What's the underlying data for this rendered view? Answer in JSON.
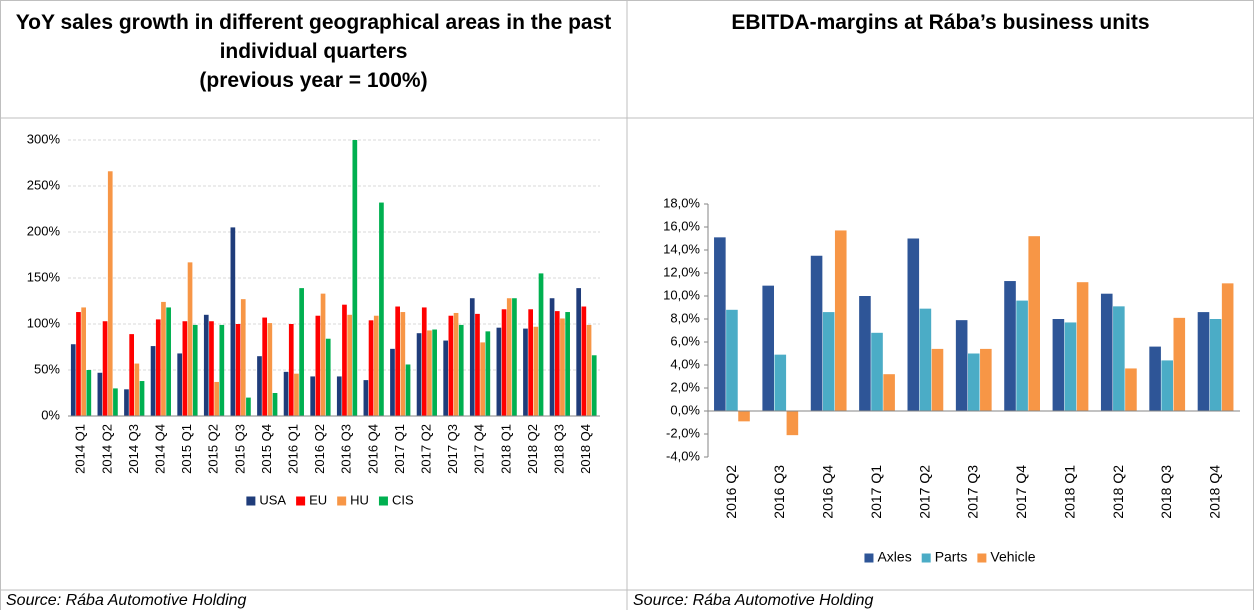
{
  "chart_data": [
    {
      "type": "bar",
      "title": "YoY sales growth in different geographical areas in the past individual quarters",
      "subtitle": "(previous year = 100%)",
      "source": "Source: Rába Automotive Holding",
      "categories": [
        "2014 Q1",
        "2014 Q2",
        "2014 Q3",
        "2014 Q4",
        "2015 Q1",
        "2015 Q2",
        "2015 Q3",
        "2015 Q4",
        "2016 Q1",
        "2016 Q2",
        "2016 Q3",
        "2016 Q4",
        "2017 Q1",
        "2017 Q2",
        "2017 Q3",
        "2017 Q4",
        "2018 Q1",
        "2018 Q2",
        "2018 Q3",
        "2018 Q4"
      ],
      "series": [
        {
          "name": "USA",
          "color": "#1f3c7a",
          "values": [
            78,
            47,
            29,
            76,
            68,
            110,
            205,
            65,
            48,
            43,
            43,
            39,
            73,
            90,
            82,
            128,
            96,
            95,
            128,
            139
          ]
        },
        {
          "name": "EU",
          "color": "#ff0000",
          "values": [
            113,
            103,
            89,
            105,
            103,
            103,
            100,
            107,
            100,
            109,
            121,
            104,
            119,
            118,
            109,
            111,
            116,
            116,
            114,
            119
          ]
        },
        {
          "name": "HU",
          "color": "#f79646",
          "values": [
            118,
            266,
            57,
            124,
            167,
            37,
            127,
            101,
            46,
            133,
            110,
            109,
            113,
            93,
            112,
            80,
            128,
            97,
            106,
            99
          ]
        },
        {
          "name": "CIS",
          "color": "#00b050",
          "values": [
            50,
            30,
            38,
            118,
            99,
            99,
            20,
            25,
            139,
            84,
            300,
            232,
            56,
            94,
            99,
            92,
            128,
            155,
            113,
            66
          ]
        }
      ],
      "ylim": [
        0,
        300
      ],
      "yticks": [
        {
          "value": 0,
          "label": "0%"
        },
        {
          "value": 50,
          "label": "50%"
        },
        {
          "value": 100,
          "label": "100%"
        },
        {
          "value": 150,
          "label": "150%"
        },
        {
          "value": 200,
          "label": "200%"
        },
        {
          "value": 250,
          "label": "250%"
        },
        {
          "value": 300,
          "label": "300%"
        }
      ],
      "grid": true
    },
    {
      "type": "bar",
      "title": "EBITDA-margins at Rába’s business units",
      "source": "Source: Rába Automotive Holding",
      "categories": [
        "2016 Q2",
        "2016 Q3",
        "2016 Q4",
        "2017 Q1",
        "2017 Q2",
        "2017 Q3",
        "2017 Q4",
        "2018 Q1",
        "2018 Q2",
        "2018 Q3",
        "2018 Q4"
      ],
      "series": [
        {
          "name": "Axles",
          "color": "#2e5597",
          "values": [
            15.1,
            10.9,
            13.5,
            10.0,
            15.0,
            7.9,
            11.3,
            8.0,
            10.2,
            5.6,
            8.6
          ]
        },
        {
          "name": "Parts",
          "color": "#4bacc6",
          "values": [
            8.8,
            4.9,
            8.6,
            6.8,
            8.9,
            5.0,
            9.6,
            7.7,
            9.1,
            4.4,
            8.0
          ]
        },
        {
          "name": "Vehicle",
          "color": "#f79646",
          "values": [
            -0.9,
            -2.1,
            15.7,
            3.2,
            5.4,
            5.4,
            15.2,
            11.2,
            3.7,
            8.1,
            11.1
          ]
        }
      ],
      "ylim": [
        -4,
        18
      ],
      "yticks": [
        {
          "value": -4,
          "label": "-4,0%"
        },
        {
          "value": -2,
          "label": "-2,0%"
        },
        {
          "value": 0,
          "label": "0,0%"
        },
        {
          "value": 2,
          "label": "2,0%"
        },
        {
          "value": 4,
          "label": "4,0%"
        },
        {
          "value": 6,
          "label": "6,0%"
        },
        {
          "value": 8,
          "label": "8,0%"
        },
        {
          "value": 10,
          "label": "10,0%"
        },
        {
          "value": 12,
          "label": "12,0%"
        },
        {
          "value": 14,
          "label": "14,0%"
        },
        {
          "value": 16,
          "label": "16,0%"
        },
        {
          "value": 18,
          "label": "18,0%"
        }
      ],
      "grid": false
    }
  ]
}
